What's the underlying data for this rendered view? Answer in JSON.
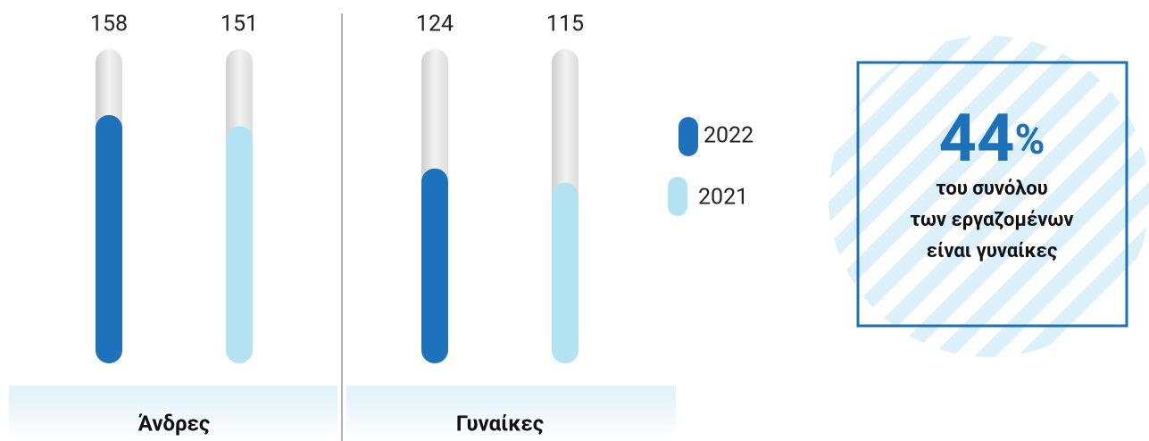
{
  "chart_data": {
    "type": "bar",
    "categories": [
      "Άνδρες",
      "Γυναίκες"
    ],
    "series": [
      {
        "name": "2022",
        "color": "#1d72bb",
        "values": [
          158,
          124
        ]
      },
      {
        "name": "2021",
        "color": "#b3e2f3",
        "values": [
          151,
          115
        ]
      }
    ],
    "ylim": [
      0,
      200
    ],
    "callout": {
      "value": 44,
      "unit": "%",
      "lines": [
        "του συνόλου",
        "των εργαζομένων",
        "είναι γυναίκες"
      ]
    }
  }
}
